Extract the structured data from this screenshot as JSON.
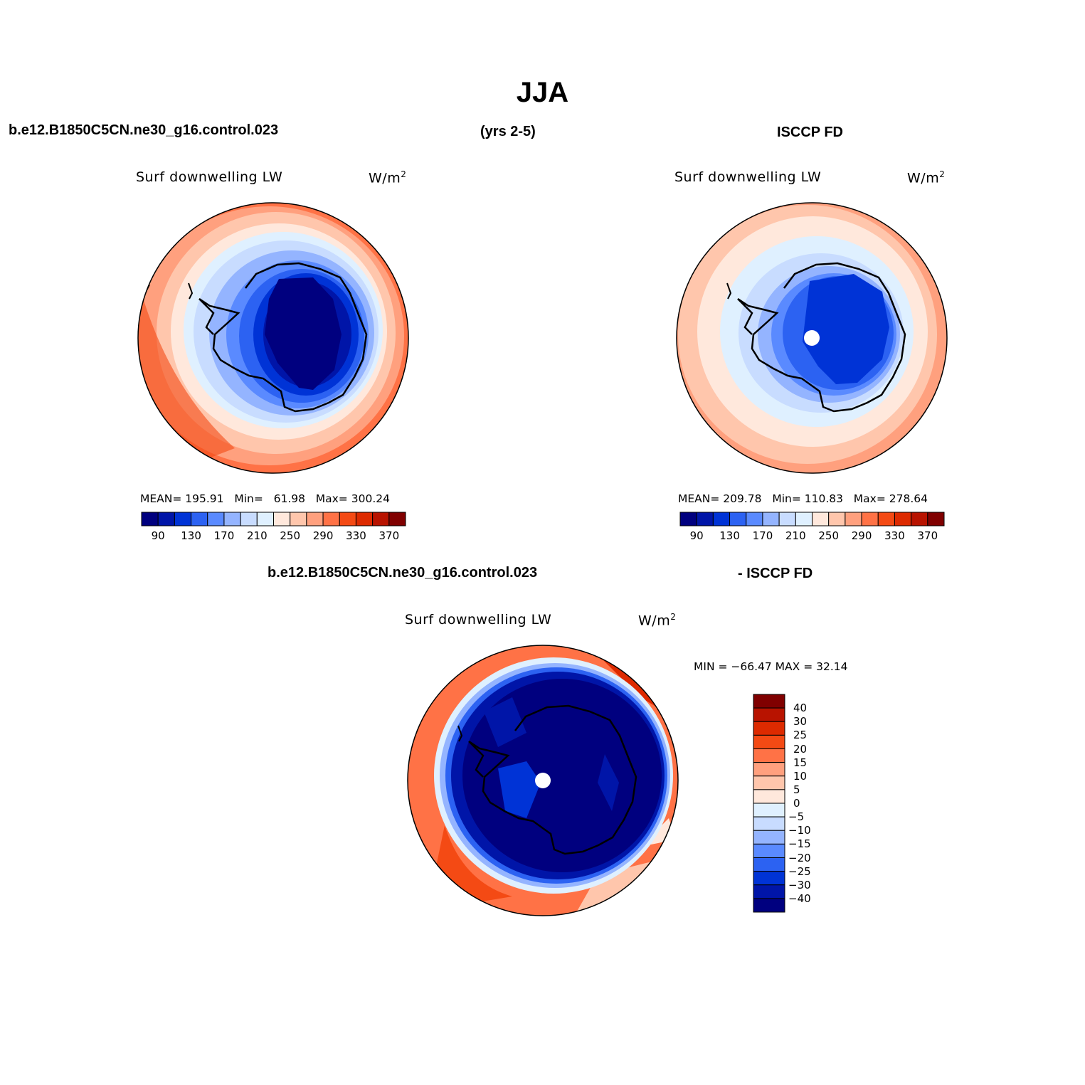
{
  "title": "JJA",
  "header": {
    "case_name": "b.e12.B1850C5CN.ne30_g16.control.023",
    "years": "(yrs 2-5)",
    "obs_name": "ISCCP FD"
  },
  "panels": {
    "model": {
      "variable": "Surf downwelling LW",
      "units_base": "W/m",
      "units_exp": "2",
      "stats": {
        "mean_label": "MEAN=",
        "mean": "195.91",
        "min_label": "Min=",
        "min": "61.98",
        "max_label": "Max=",
        "max": "300.24"
      }
    },
    "obs": {
      "variable": "Surf downwelling LW",
      "units_base": "W/m",
      "units_exp": "2",
      "stats": {
        "mean_label": "MEAN=",
        "mean": "209.78",
        "min_label": "Min=",
        "min": "110.83",
        "max_label": "Max=",
        "max": "278.64"
      }
    },
    "diff": {
      "title_left": "b.e12.B1850C5CN.ne30_g16.control.023",
      "title_right": "- ISCCP FD",
      "variable": "Surf downwelling LW",
      "units_base": "W/m",
      "units_exp": "2",
      "minmax": "MIN = −66.47 MAX =   32.14"
    }
  },
  "colorbars": {
    "abs": {
      "colors": [
        "#00007f",
        "#0015a8",
        "#0033d6",
        "#2c62f2",
        "#5a8aff",
        "#94b4ff",
        "#c8dcff",
        "#dff0ff",
        "#ffe8dc",
        "#ffc6ac",
        "#ffa07e",
        "#ff7246",
        "#f44a14",
        "#dd2a00",
        "#b81300",
        "#800000"
      ],
      "labels": [
        "90",
        "130",
        "170",
        "210",
        "250",
        "290",
        "330",
        "370"
      ]
    },
    "diff": {
      "colors": [
        "#800000",
        "#b81300",
        "#dd2a00",
        "#f44a14",
        "#ff7246",
        "#ffa07e",
        "#ffc6ac",
        "#ffe8dc",
        "#dff0ff",
        "#c8dcff",
        "#94b4ff",
        "#5a8aff",
        "#2c62f2",
        "#0033d6",
        "#0015a8",
        "#00007f"
      ],
      "labels": [
        "40",
        "30",
        "25",
        "20",
        "15",
        "10",
        "5",
        "0",
        "−5",
        "−10",
        "−15",
        "−20",
        "−25",
        "−30",
        "−40"
      ]
    }
  }
}
